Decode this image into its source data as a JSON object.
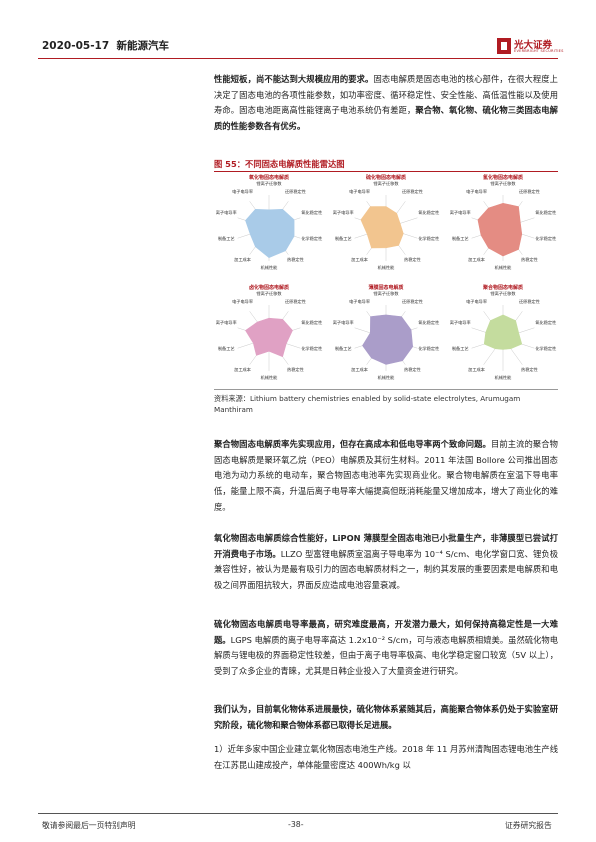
{
  "header": {
    "date": "2020-05-17",
    "category": "新能源汽车",
    "logo_cn": "光大证券",
    "logo_en": "EVERBRIGHT SECURITIES"
  },
  "intro": {
    "bold1": "性能短板，尚不能达到大规模应用的要求。",
    "text1": "固态电解质是固态电池的核心部件，在很大程度上决定了固态电池的各项性能参数，如功率密度、循环稳定性、安全性能、高低温性能以及使用寿命。固态电池距离高性能锂离子电池系统仍有差距，",
    "bold2": "聚合物、氧化物、硫化物三类固态电解质的性能参数各有优劣。"
  },
  "figure": {
    "title": "图 55：不同固态电解质性能雷达图",
    "source": "资料来源：Lithium battery chemistries enabled by solid-state electrolytes, Arumugam Manthiram"
  },
  "radar": {
    "axes": [
      "锂离子迁移数",
      "还原稳定性",
      "氧化稳定性",
      "化学稳定性",
      "热稳定性",
      "机械性能",
      "加工成本",
      "制备工艺",
      "离子电导率",
      "电子电导率"
    ],
    "charts": [
      {
        "title": "氧化物固态电解质",
        "color": "#a9cbe8",
        "values": [
          0.55,
          0.7,
          0.8,
          0.8,
          0.85,
          0.9,
          0.7,
          0.6,
          0.75,
          0.7
        ]
      },
      {
        "title": "硫化物固态电解质",
        "color": "#f2c58f",
        "values": [
          0.65,
          0.55,
          0.45,
          0.55,
          0.65,
          0.6,
          0.75,
          0.6,
          0.8,
          0.8
        ]
      },
      {
        "title": "氢化物固态电解质",
        "color": "#e48c83",
        "values": [
          0.75,
          0.8,
          0.55,
          0.6,
          0.8,
          0.85,
          0.75,
          0.7,
          0.8,
          0.75
        ]
      },
      {
        "title": "卤化物固态电解质",
        "color": "#e0a1c4",
        "values": [
          0.6,
          0.7,
          0.75,
          0.55,
          0.7,
          0.4,
          0.65,
          0.5,
          0.75,
          0.6
        ]
      },
      {
        "title": "薄膜固态电解质",
        "color": "#aa9dc9",
        "values": [
          0.7,
          0.8,
          0.8,
          0.85,
          0.85,
          0.8,
          0.75,
          0.75,
          0.5,
          0.8
        ]
      },
      {
        "title": "聚合物固态电解质",
        "color": "#c4dc9e",
        "values": [
          0.7,
          0.65,
          0.5,
          0.6,
          0.4,
          0.35,
          0.4,
          0.6,
          0.55,
          0.65
        ]
      }
    ]
  },
  "paras": [
    {
      "bold": "聚合物固态电解质率先实现应用，但存在高成本和低电导率两个致命问题。",
      "text": "目前主流的聚合物固态电解质是聚环氧乙烷（PEO）电解质及其衍生材料。2011 年法国 Bollore 公司推出固态电池为动力系统的电动车，聚合物固态电池率先实现商业化。聚合物电解质在室温下导电率低，能量上限不高，升温后离子电导率大幅提高但既消耗能量又增加成本，增大了商业化的难度。"
    },
    {
      "bold": "氧化物固态电解质综合性能好，LiPON 薄膜型全固态电池已小批量生产，非薄膜型已尝试打开消费电子市场。",
      "text": "LLZO 型富锂电解质室温离子导电率为 10⁻⁴ S/cm、电化学窗口宽、锂负极兼容性好，被认为是最有吸引力的固态电解质材料之一，制约其发展的重要因素是电解质和电极之间界面阻抗较大，界面反应造成电池容量衰减。"
    },
    {
      "bold": "硫化物固态电解质电导率最高，研究难度最高，开发潜力最大，如何保持高稳定性是一大难题。",
      "text": "LGPS 电解质的离子电导率高达 1.2x10⁻² S/cm，可与液态电解质相媲美。虽然硫化物电解质与锂电极的界面稳定性较差，但由于离子电导率极高、电化学稳定窗口较宽（5V 以上），受到了众多企业的青睐，尤其是日韩企业投入了大量资金进行研究。"
    },
    {
      "bold": "我们认为，目前氧化物体系进展最快，硫化物体系紧随其后，高能聚合物体系仍处于实验室研究阶段，硫化物和聚合物体系都已取得长足进展。",
      "text": ""
    },
    {
      "bold": "",
      "text": "1）近年多家中国企业建立氧化物固态电池生产线。2018 年 11 月苏州清陶固态锂电池生产线在江苏昆山建成投产，单体能量密度达 400Wh/kg 以"
    }
  ],
  "footer": {
    "left": "敬请参阅最后一页特别声明",
    "center": "-38-",
    "right": "证券研究报告"
  }
}
